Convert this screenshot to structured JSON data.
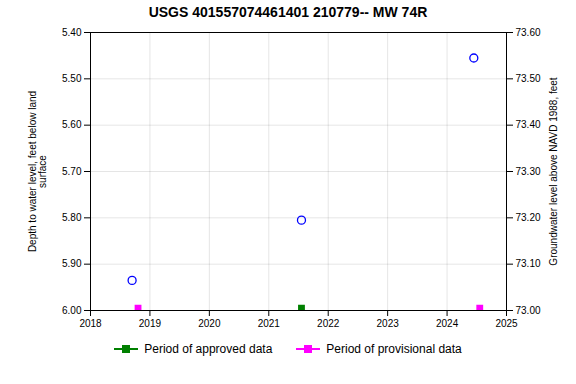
{
  "chart_data": {
    "type": "scatter",
    "title": "USGS 401557074461401 210779-- MW 74R",
    "ylabel": "Depth to water level, feet below land\nsurface",
    "y2label": "Groundwater level above NAVD 1988, feet",
    "xlim": [
      2018,
      2025
    ],
    "xticks": [
      2018,
      2019,
      2020,
      2021,
      2022,
      2023,
      2024,
      2025
    ],
    "ylim": [
      6.0,
      5.4
    ],
    "yticks": [
      {
        "value": 5.4,
        "label": "5.40"
      },
      {
        "value": 5.5,
        "label": "5.50"
      },
      {
        "value": 5.6,
        "label": "5.60"
      },
      {
        "value": 5.7,
        "label": "5.70"
      },
      {
        "value": 5.8,
        "label": "5.80"
      },
      {
        "value": 5.9,
        "label": "5.90"
      },
      {
        "value": 6.0,
        "label": "6.00"
      }
    ],
    "y2lim": [
      73.0,
      73.6
    ],
    "y2ticks": [
      {
        "value": 73.0,
        "label": "73.00"
      },
      {
        "value": 73.1,
        "label": "73.10"
      },
      {
        "value": 73.2,
        "label": "73.20"
      },
      {
        "value": 73.3,
        "label": "73.30"
      },
      {
        "value": 73.4,
        "label": "73.40"
      },
      {
        "value": 73.5,
        "label": "73.50"
      },
      {
        "value": 73.6,
        "label": "73.60"
      }
    ],
    "grid": true,
    "legend": "bottom",
    "series": [
      {
        "color": "#0000FF",
        "marker": "circle-open",
        "x": [
          2018.7,
          2021.55,
          2024.45
        ],
        "values": [
          5.935,
          5.805,
          5.455
        ]
      },
      {
        "name": "Period of approved data",
        "color": "#008000",
        "marker": "square",
        "x": [
          2021.55
        ],
        "values": [
          5.995
        ]
      },
      {
        "name": "Period of provisional data",
        "color": "#FF00FF",
        "marker": "square",
        "x": [
          2018.8,
          2024.55
        ],
        "values": [
          5.995,
          5.995
        ]
      }
    ]
  }
}
